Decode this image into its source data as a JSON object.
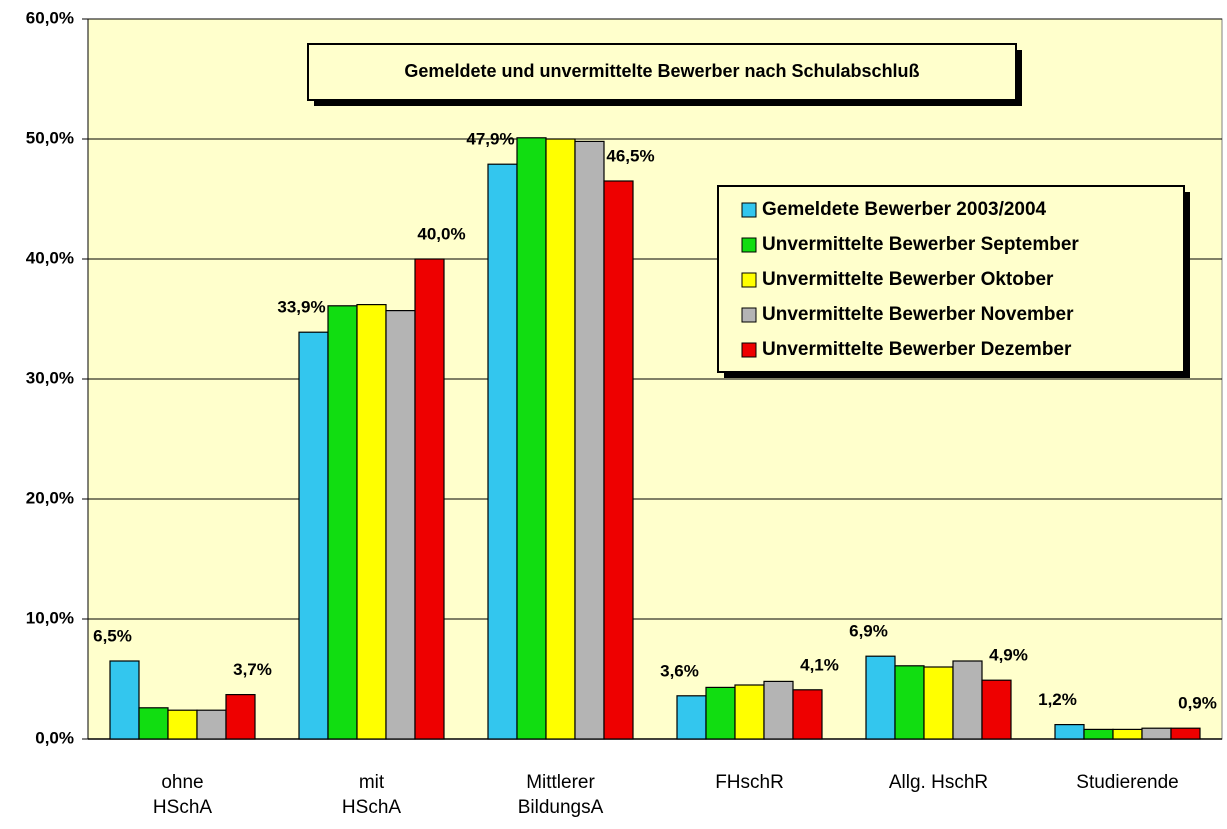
{
  "chart_data": {
    "type": "bar",
    "title": "Gemeldete und unvermittelte Bewerber nach Schulabschluß",
    "categories": [
      "ohne\nHSchA",
      "mit\nHSchA",
      "Mittlerer\nBildungsA",
      "FHschR",
      "Allg. HschR",
      "Studierende"
    ],
    "series": [
      {
        "name": "Gemeldete Bewerber 2003/2004",
        "color": "#33c6ee",
        "values": [
          6.5,
          33.9,
          47.9,
          3.6,
          6.9,
          1.2
        ],
        "value_labels": [
          "6,5%",
          "33,9%",
          "47,9%",
          "3,6%",
          "6,9%",
          "1,2%"
        ]
      },
      {
        "name": "Unvermittelte Bewerber September",
        "color": "#11dd11",
        "values": [
          2.6,
          36.1,
          50.1,
          4.3,
          6.1,
          0.8
        ]
      },
      {
        "name": "Unvermittelte Bewerber Oktober",
        "color": "#ffff00",
        "values": [
          2.4,
          36.2,
          50.0,
          4.5,
          6.0,
          0.8
        ]
      },
      {
        "name": "Unvermittelte Bewerber November",
        "color": "#b4b4b4",
        "values": [
          2.4,
          35.7,
          49.8,
          4.8,
          6.5,
          0.9
        ]
      },
      {
        "name": "Unvermittelte Bewerber Dezember",
        "color": "#ee0000",
        "values": [
          3.7,
          40.0,
          46.5,
          4.1,
          4.9,
          0.9
        ],
        "value_labels": [
          "3,7%",
          "40,0%",
          "46,5%",
          "4,1%",
          "4,9%",
          "0,9%"
        ]
      }
    ],
    "ylim": [
      0,
      60
    ],
    "yticks": [
      {
        "value": 0,
        "label": "0,0%"
      },
      {
        "value": 10,
        "label": "10,0%"
      },
      {
        "value": 20,
        "label": "20,0%"
      },
      {
        "value": 30,
        "label": "30,0%"
      },
      {
        "value": 40,
        "label": "40,0%"
      },
      {
        "value": 50,
        "label": "50,0%"
      },
      {
        "value": 60,
        "label": "60,0%"
      }
    ],
    "grid": true,
    "legend": "upper right"
  }
}
